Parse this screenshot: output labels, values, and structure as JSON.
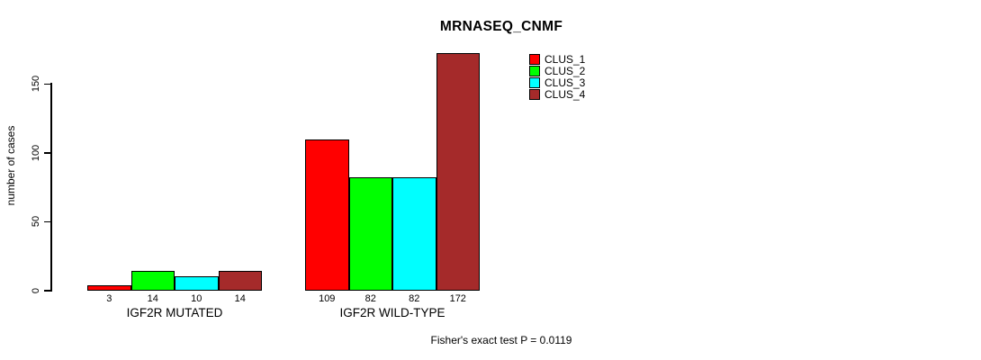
{
  "chart_data": {
    "type": "bar",
    "title": "MRNASEQ_CNMF",
    "xlabel": "",
    "ylabel": "number of cases",
    "ylim": [
      0,
      175
    ],
    "yticks": [
      0,
      50,
      100,
      150
    ],
    "grid": false,
    "legend_position": "top-right",
    "categories": [
      "IGF2R MUTATED",
      "IGF2R WILD-TYPE"
    ],
    "series": [
      {
        "name": "CLUS_1",
        "color": "#FF0000",
        "values": [
          3,
          109
        ]
      },
      {
        "name": "CLUS_2",
        "color": "#00FF00",
        "values": [
          14,
          82
        ]
      },
      {
        "name": "CLUS_3",
        "color": "#00FFFF",
        "values": [
          10,
          82
        ]
      },
      {
        "name": "CLUS_4",
        "color": "#A52A2A",
        "values": [
          14,
          172
        ]
      }
    ],
    "bar_value_labels_shown": true,
    "annotation": "Fisher's exact test P = 0.0119"
  }
}
